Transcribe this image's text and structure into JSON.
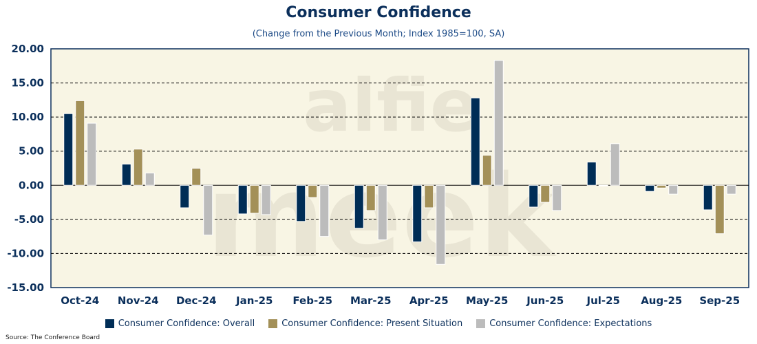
{
  "chart_data": {
    "type": "bar",
    "title": "Consumer Confidence",
    "subtitle": "(Change from the Previous Month; Index 1985=100, SA)",
    "categories": [
      "Oct-24",
      "Nov-24",
      "Dec-24",
      "Jan-25",
      "Feb-25",
      "Mar-25",
      "Apr-25",
      "May-25",
      "Jun-25",
      "Jul-25",
      "Aug-25",
      "Sep-25"
    ],
    "series": [
      {
        "name": "Consumer Confidence: Overall",
        "color": "#002d56",
        "values": [
          10.5,
          3.1,
          -3.3,
          -4.2,
          -5.3,
          -6.3,
          -8.3,
          12.8,
          -3.2,
          3.4,
          -0.9,
          -3.6
        ]
      },
      {
        "name": "Consumer Confidence: Present Situation",
        "color": "#a39058",
        "values": [
          12.4,
          5.3,
          2.5,
          -4.1,
          -1.8,
          -3.7,
          -3.3,
          4.4,
          -2.5,
          -0.1,
          -0.4,
          -7.1
        ]
      },
      {
        "name": "Consumer Confidence: Expectations",
        "color": "#bcbcbc",
        "values": [
          9.1,
          1.8,
          -7.3,
          -4.3,
          -7.5,
          -8.0,
          -11.6,
          18.3,
          -3.7,
          6.1,
          -1.3,
          -1.3
        ]
      }
    ],
    "ylim": [
      -15,
      20
    ],
    "yticks": [
      "20.00",
      "15.00",
      "10.00",
      "5.00",
      "0.00",
      "-5.00",
      "-10.00",
      "-15.00"
    ],
    "ytick_values": [
      20,
      15,
      10,
      5,
      0,
      -5,
      -10,
      -15
    ],
    "grid": true,
    "legend": "bottom",
    "xlabel": "",
    "ylabel": ""
  },
  "source": "Source: The Conference Board",
  "watermark": "alfie meek"
}
